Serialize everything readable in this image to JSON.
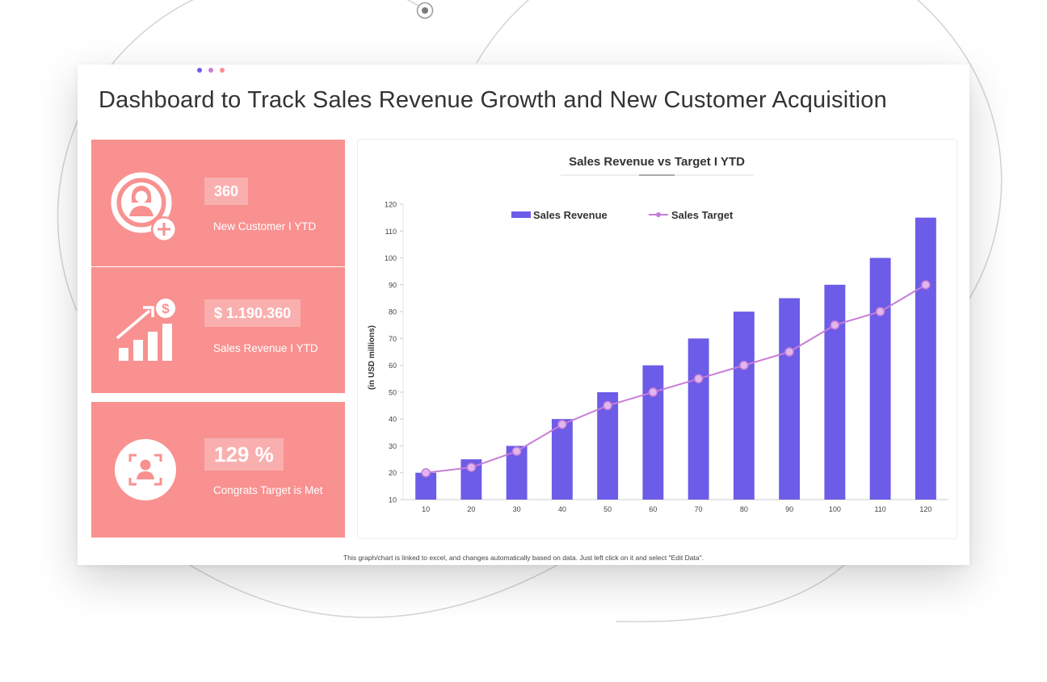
{
  "title": "Dashboard to Track Sales Revenue Growth and New Customer Acquisition",
  "colors": {
    "kpi_background": "#f89190",
    "revenue_bar": "#6c5ce7",
    "target_line": "#c77dd6",
    "dot_1": "#6c5ce7",
    "dot_2": "#c77dd6",
    "dot_3": "#f89190"
  },
  "kpis": [
    {
      "value": "360",
      "label": "New Customer I YTD",
      "icon": "add-user-icon"
    },
    {
      "value": "$ 1.190.360",
      "label": "Sales Revenue  I YTD",
      "icon": "growth-chart-dollar-icon"
    },
    {
      "value": "129 %",
      "label": "Congrats Target is Met",
      "icon": "target-person-icon"
    }
  ],
  "footnote": "This graph/chart is linked to excel, and changes automatically based on data. Just left click on it and select \"Edit Data\".",
  "chart_data": {
    "type": "bar",
    "title": "Sales Revenue vs Target I YTD",
    "xlabel": "",
    "ylabel": "(in USD millions)",
    "categories": [
      "10",
      "20",
      "30",
      "40",
      "50",
      "60",
      "70",
      "80",
      "90",
      "100",
      "110",
      "120"
    ],
    "series": [
      {
        "name": "Sales Revenue",
        "type": "bar",
        "values": [
          20,
          25,
          30,
          40,
          50,
          60,
          70,
          80,
          85,
          90,
          100,
          115
        ]
      },
      {
        "name": "Sales Target",
        "type": "line",
        "values": [
          20,
          22,
          28,
          38,
          45,
          50,
          55,
          60,
          65,
          75,
          80,
          90
        ]
      }
    ],
    "ylim": [
      10,
      120
    ],
    "yticks": [
      10,
      20,
      30,
      40,
      50,
      60,
      70,
      80,
      90,
      100,
      110,
      120
    ],
    "legend_position": "top-center",
    "grid": false
  }
}
